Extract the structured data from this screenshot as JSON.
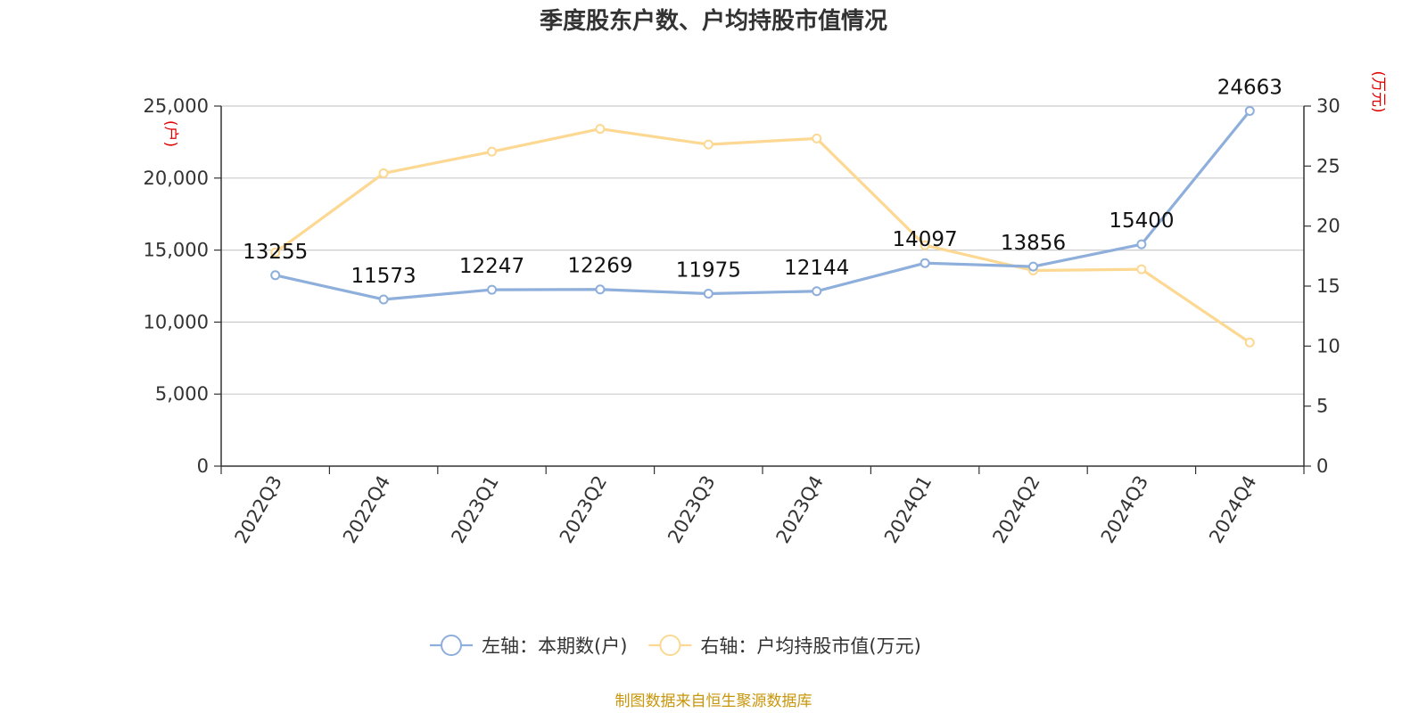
{
  "chart_data": {
    "type": "line",
    "title": "季度股东户数、户均持股市值情况",
    "categories": [
      "2022Q3",
      "2022Q4",
      "2023Q1",
      "2023Q2",
      "2023Q3",
      "2023Q4",
      "2024Q1",
      "2024Q2",
      "2024Q3",
      "2024Q4"
    ],
    "series": [
      {
        "name": "左轴：本期数(户)",
        "axis": "left",
        "color": "#8eaedb",
        "values": [
          13255,
          11573,
          12247,
          12269,
          11975,
          12144,
          14097,
          13856,
          15400,
          24663
        ],
        "data_labels": [
          "13255",
          "11573",
          "12247",
          "12269",
          "11975",
          "12144",
          "14097",
          "13856",
          "15400",
          "24663"
        ]
      },
      {
        "name": "右轴：户均持股市值(万元)",
        "axis": "right",
        "color": "#fcd892",
        "values": [
          17.8,
          24.4,
          26.2,
          28.1,
          26.8,
          27.3,
          18.4,
          16.3,
          16.4,
          10.3
        ]
      }
    ],
    "y_left": {
      "unit": "(户)",
      "range": [
        0,
        25000
      ],
      "ticks": [
        0,
        5000,
        10000,
        15000,
        20000,
        25000
      ],
      "tick_labels": [
        "0",
        "5,000",
        "10,000",
        "15,000",
        "20,000",
        "25,000"
      ]
    },
    "y_right": {
      "unit": "(万元)",
      "range": [
        0,
        30
      ],
      "ticks": [
        0,
        5,
        10,
        15,
        20,
        25,
        30
      ],
      "tick_labels": [
        "0",
        "5",
        "10",
        "15",
        "20",
        "25",
        "30"
      ]
    },
    "grid": true,
    "legend_position": "bottom-center",
    "source": "制图数据来自恒生聚源数据库"
  }
}
